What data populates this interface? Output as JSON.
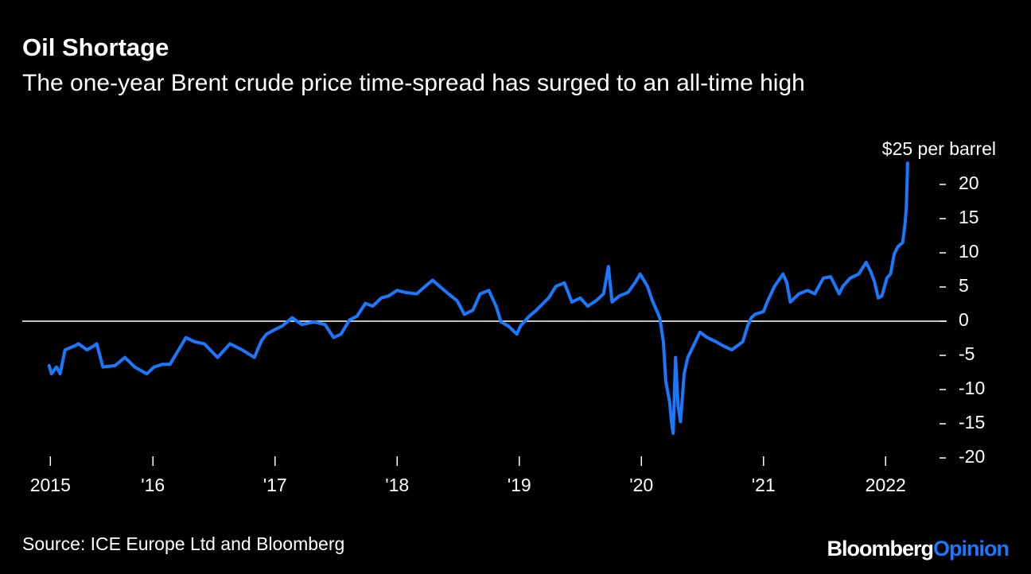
{
  "chart_data": {
    "type": "line",
    "title": "Oil Shortage",
    "subtitle": "The one-year Brent crude price time-spread has surged to an all-time high",
    "source": "Source: ICE Europe Ltd and Bloomberg",
    "brand": "Bloomberg",
    "brand_suffix": "Opinion",
    "xlim": [
      2014.93,
      2022.5
    ],
    "xticks": [
      {
        "value": 2015.16,
        "label": "2015"
      },
      {
        "value": 2016,
        "label": "'16"
      },
      {
        "value": 2017,
        "label": "'17"
      },
      {
        "value": 2018,
        "label": "'18"
      },
      {
        "value": 2019,
        "label": "'19"
      },
      {
        "value": 2020,
        "label": "'20"
      },
      {
        "value": 2021,
        "label": "'21"
      },
      {
        "value": 2022,
        "label": "2022"
      }
    ],
    "ylim": [
      -20,
      25
    ],
    "yticks": [
      -20,
      -15,
      -10,
      -5,
      0,
      5,
      10,
      15,
      20,
      {
        "value": 25,
        "label": "$25 per barrel"
      }
    ],
    "zero_line": true,
    "series": [
      {
        "name": "Brent one-year time-spread",
        "color": "#1a78ff",
        "x": [
          2015.15,
          2015.17,
          2015.21,
          2015.24,
          2015.28,
          2015.36,
          2015.39,
          2015.46,
          2015.51,
          2015.54,
          2015.59,
          2015.69,
          2015.77,
          2015.85,
          2015.95,
          2016.01,
          2016.08,
          2016.14,
          2016.21,
          2016.27,
          2016.34,
          2016.42,
          2016.53,
          2016.63,
          2016.73,
          2016.83,
          2016.89,
          2016.93,
          2016.99,
          2017.06,
          2017.14,
          2017.22,
          2017.32,
          2017.41,
          2017.48,
          2017.54,
          2017.61,
          2017.67,
          2017.74,
          2017.8,
          2017.87,
          2017.93,
          2018.0,
          2018.07,
          2018.16,
          2018.23,
          2018.29,
          2018.36,
          2018.42,
          2018.49,
          2018.55,
          2018.62,
          2018.68,
          2018.75,
          2018.81,
          2018.85,
          2018.91,
          2018.98,
          2019.01,
          2019.08,
          2019.14,
          2019.24,
          2019.3,
          2019.37,
          2019.43,
          2019.5,
          2019.56,
          2019.63,
          2019.69,
          2019.73,
          2019.76,
          2019.82,
          2019.89,
          2019.95,
          2019.99,
          2020.02,
          2020.05,
          2020.09,
          2020.15,
          2020.18,
          2020.2,
          2020.23,
          2020.25,
          2020.26,
          2020.28,
          2020.3,
          2020.32,
          2020.35,
          2020.38,
          2020.41,
          2020.48,
          2020.54,
          2020.61,
          2020.67,
          2020.74,
          2020.83,
          2020.87,
          2020.9,
          2020.93,
          2021.0,
          2021.03,
          2021.09,
          2021.16,
          2021.19,
          2021.22,
          2021.29,
          2021.36,
          2021.42,
          2021.49,
          2021.55,
          2021.62,
          2021.65,
          2021.71,
          2021.78,
          2021.84,
          2021.88,
          2021.91,
          2021.94,
          2021.97,
          2022.01,
          2022.04,
          2022.07,
          2022.1,
          2022.14,
          2022.16,
          2022.17,
          2022.18
        ],
        "values": [
          -6.5,
          -7.7,
          -6.7,
          -7.7,
          -4.2,
          -3.6,
          -3.3,
          -4.2,
          -3.7,
          -3.3,
          -6.7,
          -6.5,
          -5.3,
          -6.7,
          -7.7,
          -6.7,
          -6.3,
          -6.3,
          -4.2,
          -2.4,
          -3.0,
          -3.3,
          -5.3,
          -3.3,
          -4.2,
          -5.3,
          -2.8,
          -1.9,
          -1.3,
          -0.7,
          0.5,
          -0.5,
          -0.1,
          -0.5,
          -2.4,
          -1.9,
          0.2,
          0.7,
          2.6,
          2.2,
          3.4,
          3.7,
          4.5,
          4.2,
          4.0,
          5.1,
          6.0,
          4.9,
          4.0,
          3.0,
          1.0,
          1.6,
          4.0,
          4.5,
          2.2,
          -0.1,
          -0.7,
          -1.9,
          -0.7,
          0.7,
          1.6,
          3.4,
          5.1,
          5.6,
          2.8,
          3.4,
          2.2,
          3.0,
          4.0,
          8.0,
          2.8,
          3.7,
          4.2,
          5.7,
          6.9,
          6.0,
          5.1,
          3.0,
          0.5,
          -3.0,
          -8.8,
          -11.7,
          -15.2,
          -16.4,
          -5.3,
          -12.3,
          -14.7,
          -7.7,
          -5.3,
          -4.2,
          -1.6,
          -2.4,
          -3.0,
          -3.6,
          -4.2,
          -3.0,
          -0.7,
          0.5,
          1.0,
          1.4,
          2.8,
          5.1,
          6.9,
          5.7,
          2.8,
          4.0,
          4.5,
          4.0,
          6.3,
          6.5,
          4.0,
          5.1,
          6.3,
          6.9,
          8.6,
          7.2,
          5.7,
          3.4,
          3.7,
          6.3,
          6.9,
          9.8,
          10.9,
          11.5,
          14.4,
          16.7,
          23.1
        ]
      }
    ]
  }
}
